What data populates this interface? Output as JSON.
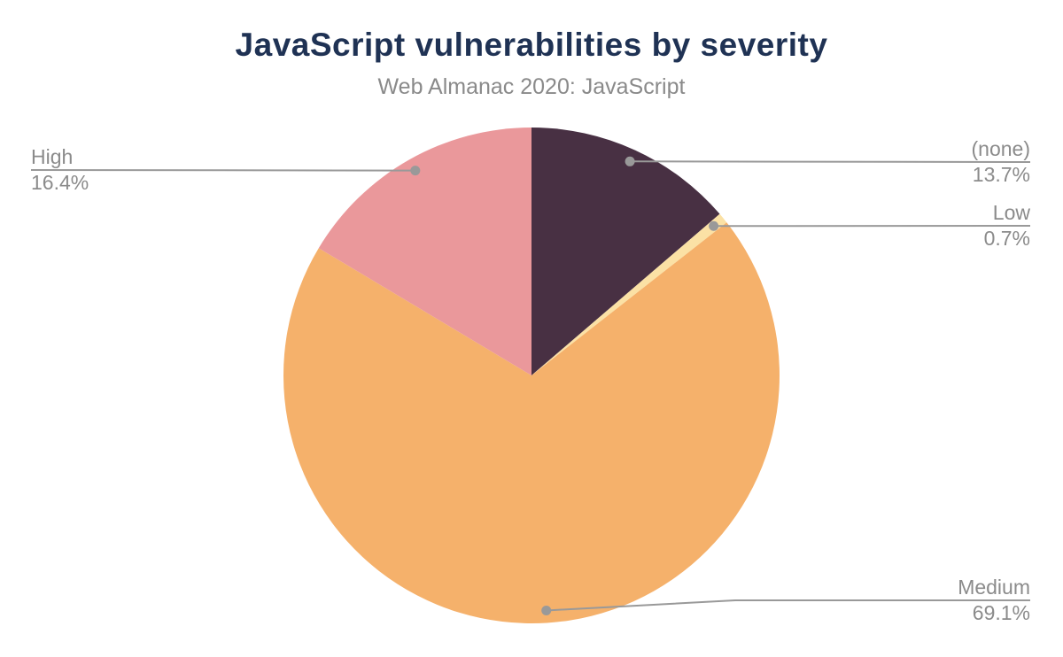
{
  "chart_data": {
    "type": "pie",
    "title": "JavaScript vulnerabilities by severity",
    "subtitle": "Web Almanac 2020: JavaScript",
    "unit": "%",
    "direction": "clockwise",
    "start_angle": "12 o'clock",
    "legend": "none — slices annotated with leader-line labels",
    "slices": [
      {
        "label": "(none)",
        "value": 13.7,
        "display": "13.7%",
        "color": "#483043"
      },
      {
        "label": "Low",
        "value": 0.7,
        "display": "0.7%",
        "color": "#fbe1a5"
      },
      {
        "label": "Medium",
        "value": 69.1,
        "display": "69.1%",
        "color": "#f5b16b"
      },
      {
        "label": "High",
        "value": 16.4,
        "display": "16.4%",
        "color": "#ea989b"
      }
    ],
    "colors": {
      "title": "#1f3254",
      "subtitle": "#8a8a8a",
      "label_text": "#8b8b8b",
      "connector": "#999999",
      "background": "#ffffff"
    }
  }
}
